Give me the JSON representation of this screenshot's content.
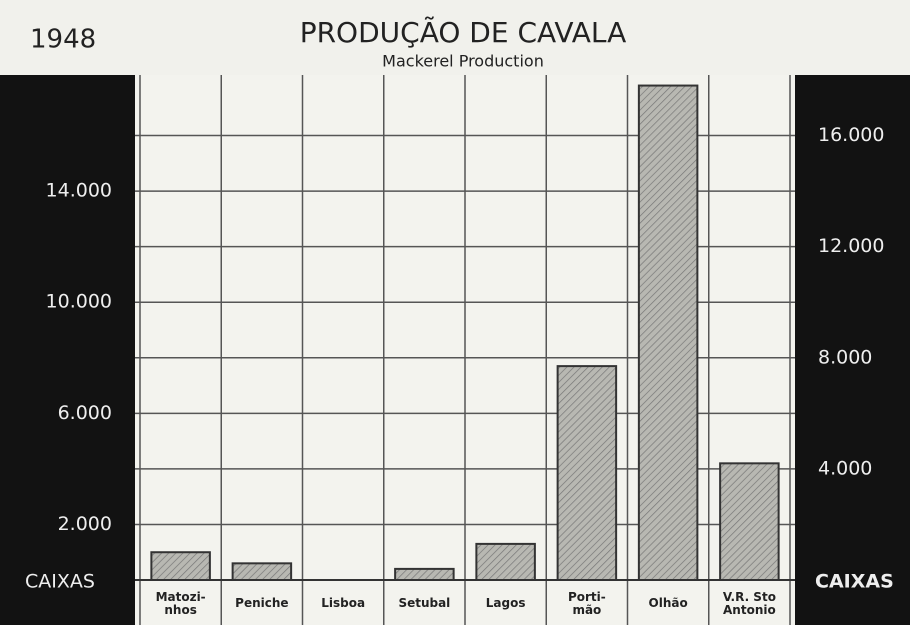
{
  "chart_data": {
    "type": "bar",
    "title": "PRODUÇÃO DE CAVALA",
    "subtitle": "Mackerel Production",
    "year": "1948",
    "y_label": "CAIXAS",
    "y2_label": "CAIXAS",
    "categories": [
      "Matozi-\nnhos",
      "Peniche",
      "Lisboa",
      "Setubal",
      "Lagos",
      "Porti-\nmão",
      "Olhão",
      "V.R. Sto\nAntonio"
    ],
    "values": [
      1000,
      600,
      0,
      400,
      1300,
      7700,
      17800,
      4200
    ],
    "color": "#b8b8b2",
    "ylim": [
      0,
      18000
    ],
    "yticks": [
      {
        "value": 2000,
        "label": "2.000"
      },
      {
        "value": 6000,
        "label": "6.000"
      },
      {
        "value": 10000,
        "label": "10.000"
      },
      {
        "value": 14000,
        "label": "14.000"
      }
    ],
    "y2lim": [
      0,
      18000
    ],
    "y2ticks": [
      {
        "value": 4000,
        "label": "4.000"
      },
      {
        "value": 8000,
        "label": "8.000"
      },
      {
        "value": 12000,
        "label": "12.000"
      },
      {
        "value": 16000,
        "label": "16.000"
      }
    ],
    "grid": true
  }
}
